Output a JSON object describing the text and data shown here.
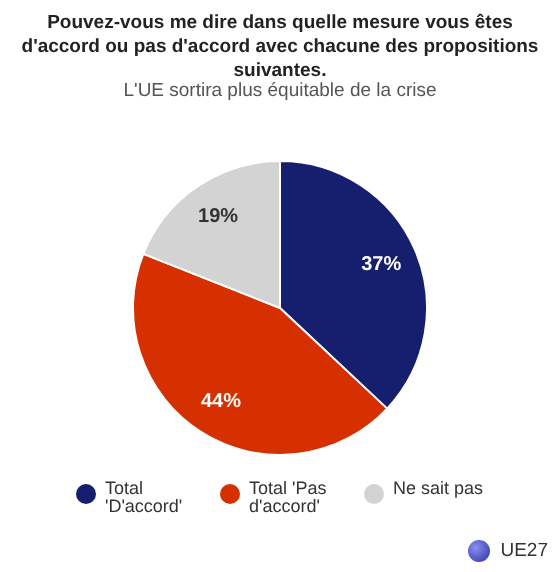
{
  "chart_data": {
    "type": "pie",
    "title": "Pouvez-vous me dire dans quelle mesure vous êtes d'accord ou pas d'accord avec chacune des propositions suivantes.",
    "subtitle": "L'UE sortira plus équitable de la crise",
    "categories": [
      "Total 'D'accord'",
      "Total 'Pas d'accord'",
      "Ne sait pas"
    ],
    "values": [
      37,
      44,
      19
    ],
    "colors": [
      "#151f6d",
      "#d62f00",
      "#d3d3d3"
    ],
    "value_labels": [
      "37%",
      "44%",
      "19%"
    ],
    "legend": "bottom",
    "annotations": [
      "UE27"
    ]
  }
}
